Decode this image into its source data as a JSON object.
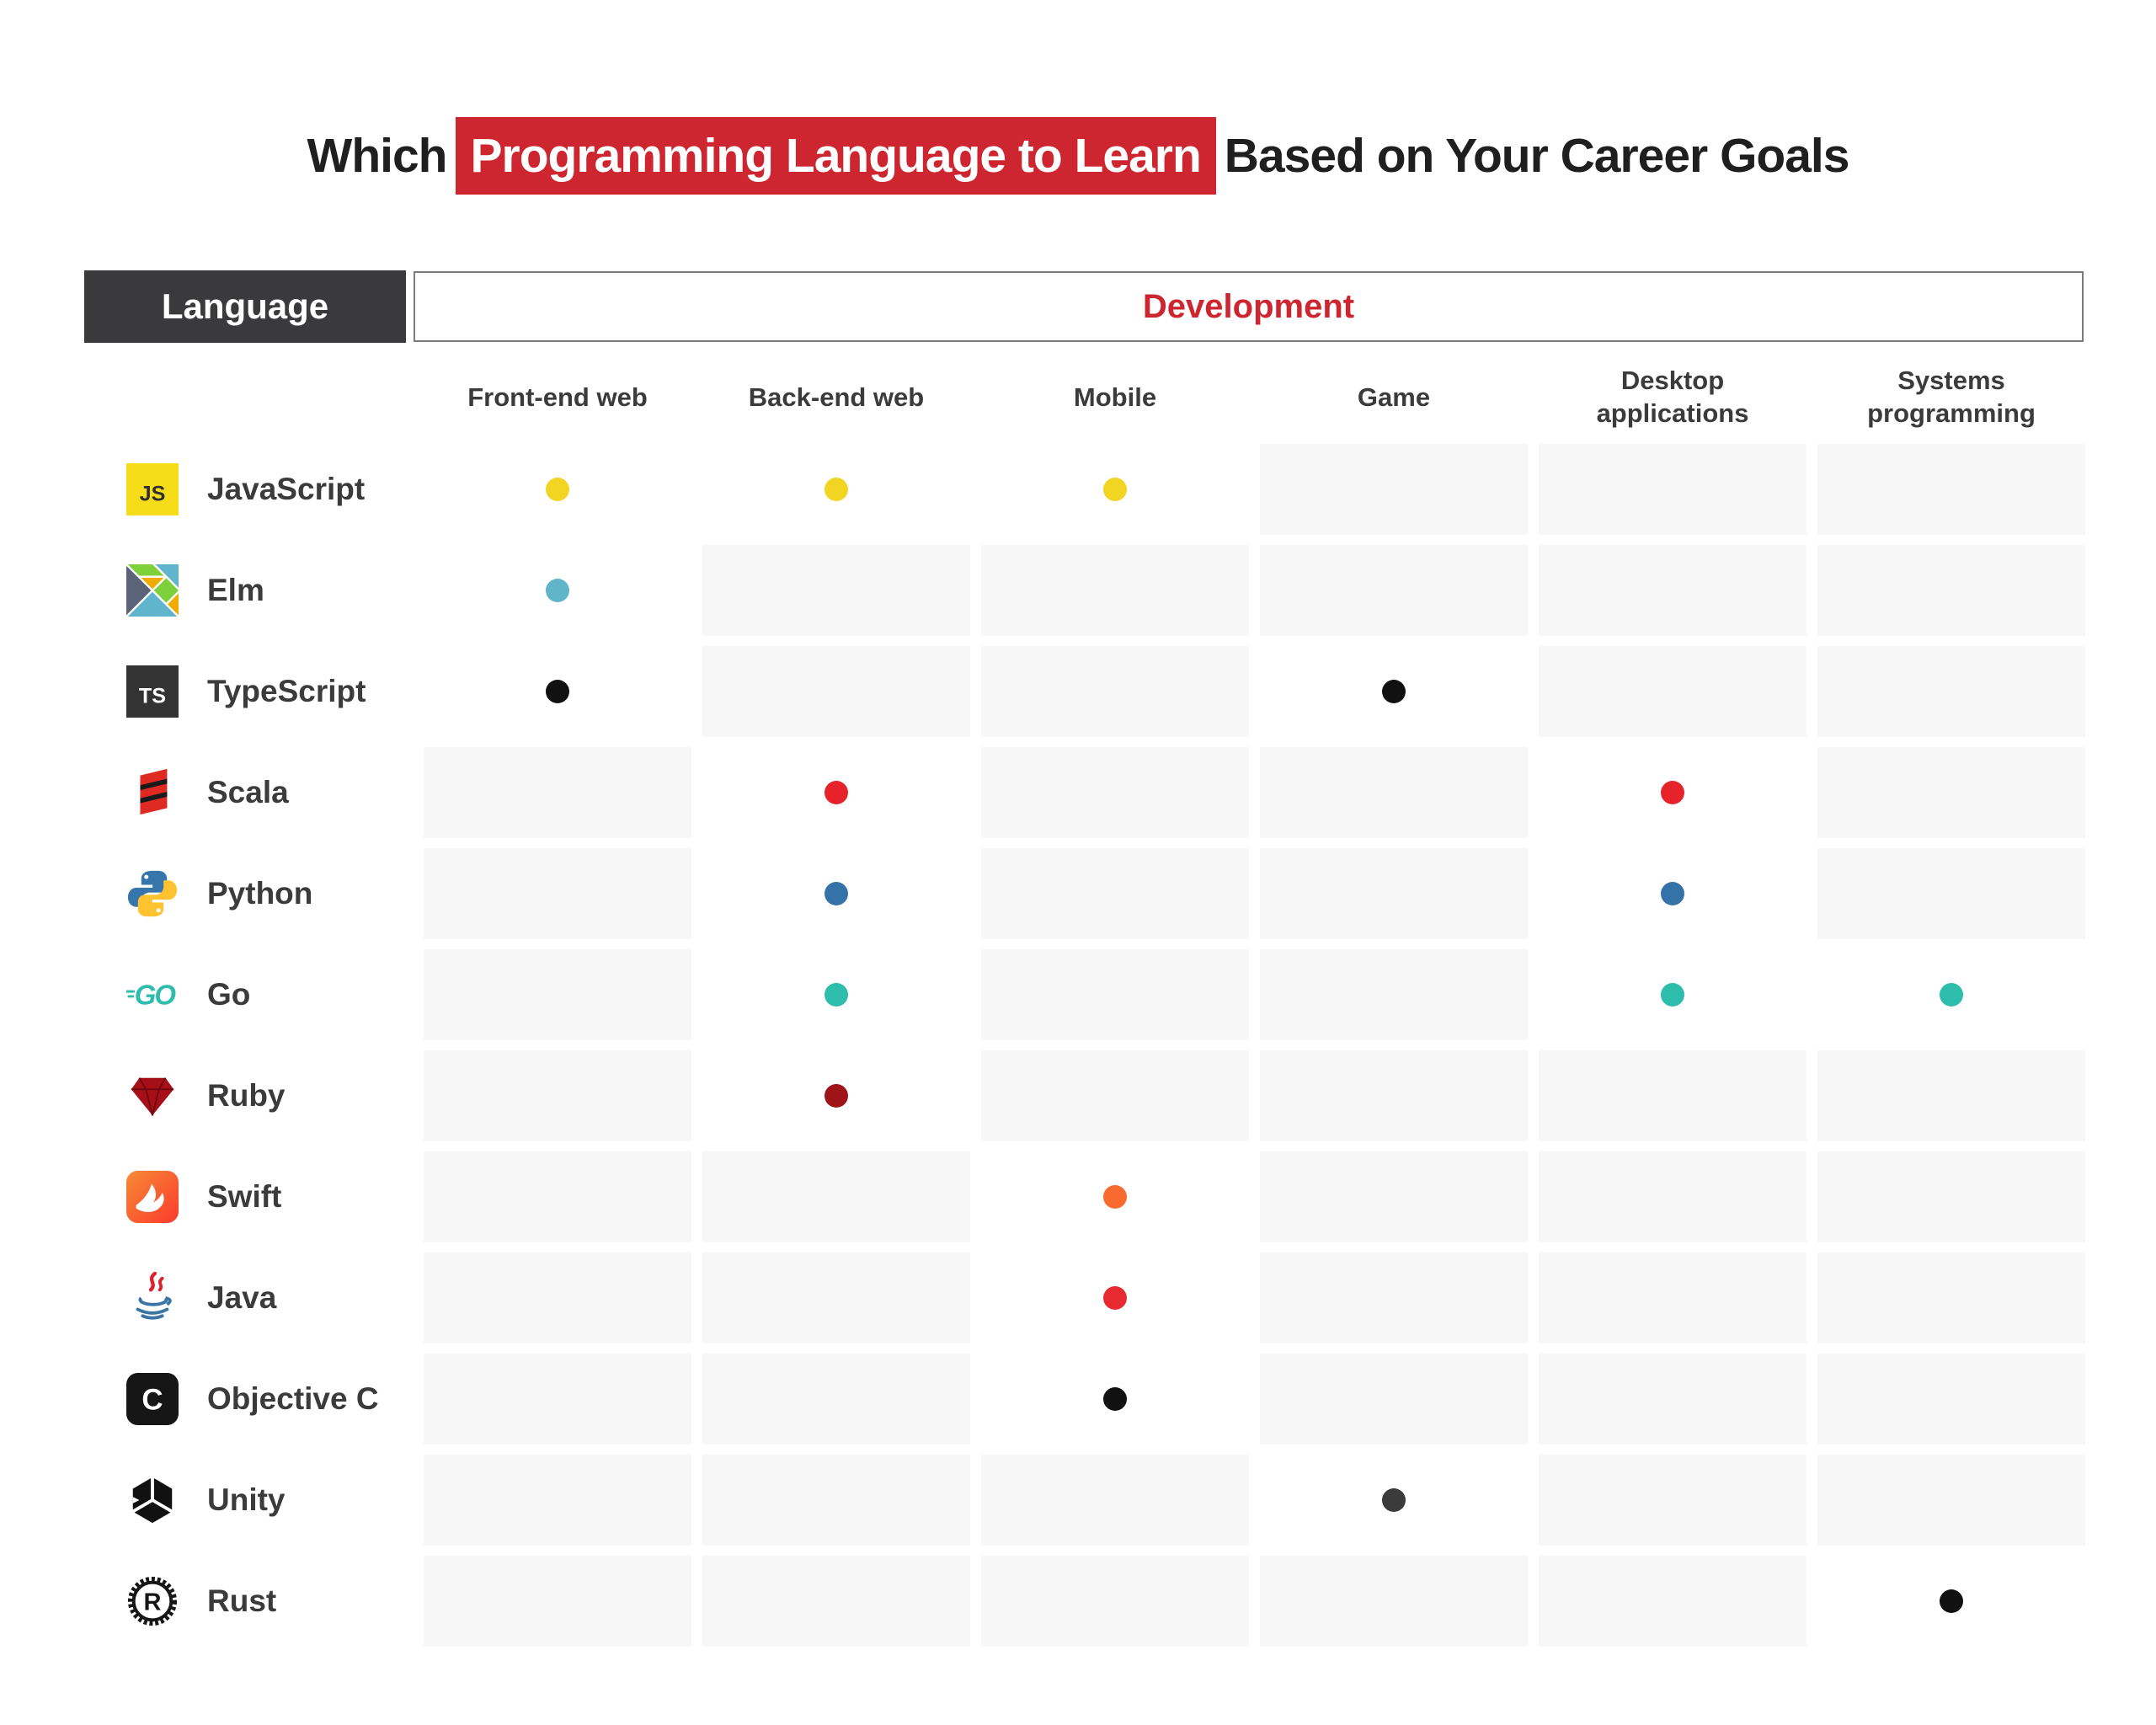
{
  "title": {
    "prefix": "Which",
    "highlight": "Programming Language to Learn",
    "suffix": "Based on Your Career Goals"
  },
  "header": {
    "language": "Language",
    "development": "Development"
  },
  "columns": [
    "Front-end web",
    "Back-end web",
    "Mobile",
    "Game",
    "Desktop applications",
    "Systems programming"
  ],
  "languages": [
    {
      "name": "JavaScript",
      "icon": "javascript-icon",
      "dot_color": "#F2D522",
      "marks": [
        1,
        1,
        1,
        0,
        0,
        0
      ]
    },
    {
      "name": "Elm",
      "icon": "elm-icon",
      "dot_color": "#60B5C9",
      "marks": [
        1,
        0,
        0,
        0,
        0,
        0
      ]
    },
    {
      "name": "TypeScript",
      "icon": "typescript-icon",
      "dot_color": "#111111",
      "marks": [
        1,
        0,
        0,
        1,
        0,
        0
      ]
    },
    {
      "name": "Scala",
      "icon": "scala-icon",
      "dot_color": "#E6232B",
      "marks": [
        0,
        1,
        0,
        0,
        1,
        0
      ]
    },
    {
      "name": "Python",
      "icon": "python-icon",
      "dot_color": "#3572A8",
      "marks": [
        0,
        1,
        0,
        0,
        1,
        0
      ]
    },
    {
      "name": "Go",
      "icon": "go-icon",
      "dot_color": "#2EBCAC",
      "marks": [
        0,
        1,
        0,
        0,
        1,
        1
      ]
    },
    {
      "name": "Ruby",
      "icon": "ruby-icon",
      "dot_color": "#9E1418",
      "marks": [
        0,
        1,
        0,
        0,
        0,
        0
      ]
    },
    {
      "name": "Swift",
      "icon": "swift-icon",
      "dot_color": "#F96A31",
      "marks": [
        0,
        0,
        1,
        0,
        0,
        0
      ]
    },
    {
      "name": "Java",
      "icon": "java-icon",
      "dot_color": "#E72A30",
      "marks": [
        0,
        0,
        1,
        0,
        0,
        0
      ]
    },
    {
      "name": "Objective C",
      "icon": "objective-c-icon",
      "dot_color": "#111111",
      "marks": [
        0,
        0,
        1,
        0,
        0,
        0
      ]
    },
    {
      "name": "Unity",
      "icon": "unity-icon",
      "dot_color": "#3B3B3B",
      "marks": [
        0,
        0,
        0,
        1,
        0,
        0
      ]
    },
    {
      "name": "Rust",
      "icon": "rust-icon",
      "dot_color": "#111111",
      "marks": [
        0,
        0,
        0,
        0,
        0,
        1
      ]
    }
  ],
  "colors": {
    "accent_red": "#CE2630",
    "header_dark": "#3A3A3C",
    "cell_gray": "#F7F7F8",
    "text_dark": "#3B3B3B"
  },
  "chart_data": {
    "type": "table",
    "title": "Which Programming Language to Learn Based on Your Career Goals",
    "columns": [
      "Front-end web",
      "Back-end web",
      "Mobile",
      "Game",
      "Desktop applications",
      "Systems programming"
    ],
    "rows": [
      {
        "language": "JavaScript",
        "marks": [
          "Front-end web",
          "Back-end web",
          "Mobile"
        ]
      },
      {
        "language": "Elm",
        "marks": [
          "Front-end web"
        ]
      },
      {
        "language": "TypeScript",
        "marks": [
          "Front-end web",
          "Game"
        ]
      },
      {
        "language": "Scala",
        "marks": [
          "Back-end web",
          "Desktop applications"
        ]
      },
      {
        "language": "Python",
        "marks": [
          "Back-end web",
          "Desktop applications"
        ]
      },
      {
        "language": "Go",
        "marks": [
          "Back-end web",
          "Desktop applications",
          "Systems programming"
        ]
      },
      {
        "language": "Ruby",
        "marks": [
          "Back-end web"
        ]
      },
      {
        "language": "Swift",
        "marks": [
          "Mobile"
        ]
      },
      {
        "language": "Java",
        "marks": [
          "Mobile"
        ]
      },
      {
        "language": "Objective C",
        "marks": [
          "Mobile"
        ]
      },
      {
        "language": "Unity",
        "marks": [
          "Game"
        ]
      },
      {
        "language": "Rust",
        "marks": [
          "Systems programming"
        ]
      }
    ],
    "legend_position": "none",
    "grid": false
  }
}
